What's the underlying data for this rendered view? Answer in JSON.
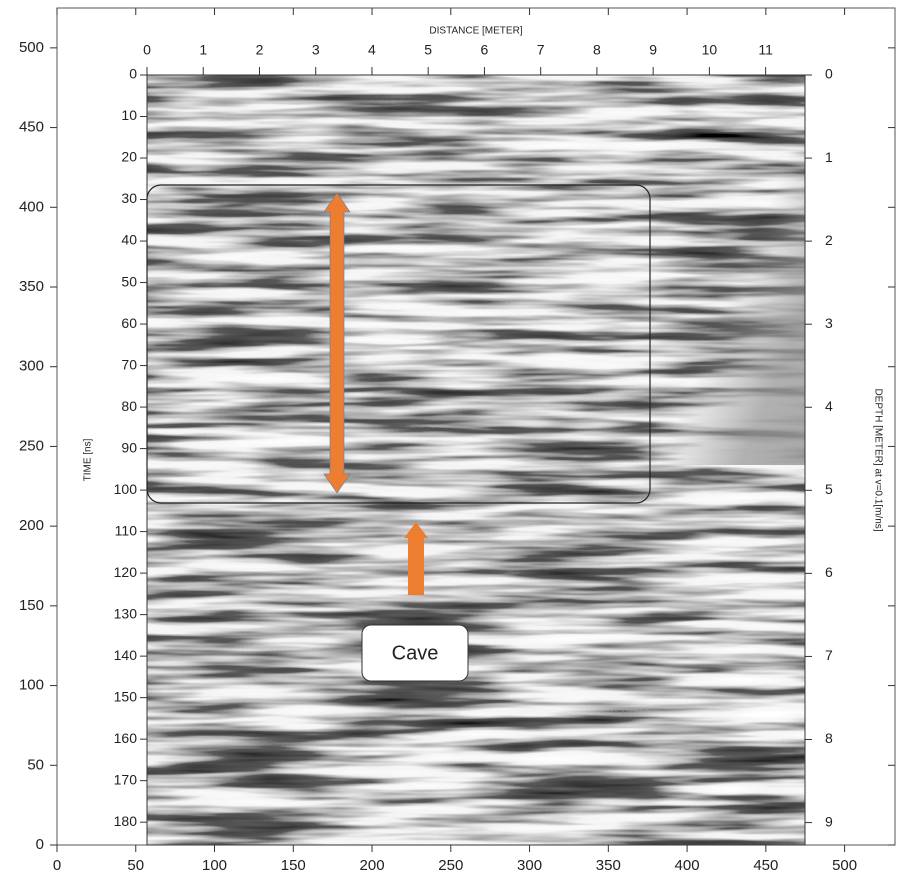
{
  "chart_data": {
    "type": "radargram",
    "xlim": [
      0,
      532
    ],
    "xticks": [
      0,
      50,
      100,
      150,
      200,
      250,
      300,
      350,
      400,
      450,
      500
    ],
    "ylim": [
      0,
      525
    ],
    "yticks": [
      0,
      50,
      100,
      150,
      200,
      250,
      300,
      350,
      400,
      450,
      500
    ],
    "distance_axis": {
      "label": "DISTANCE [METER]",
      "xlim": [
        0,
        11.7
      ],
      "xticks": [
        0,
        1,
        2,
        3,
        4,
        5,
        6,
        7,
        8,
        9,
        10,
        11
      ]
    },
    "time_axis": {
      "label": "TIME [ns]",
      "ylim": [
        0,
        185.5
      ],
      "yticks": [
        0,
        10,
        20,
        30,
        40,
        50,
        60,
        70,
        80,
        90,
        100,
        110,
        120,
        130,
        140,
        150,
        160,
        170,
        180
      ]
    },
    "depth_axis": {
      "label": "DEPTH [METER] at v=0.1[m/ns]",
      "ylim": [
        0,
        9.27
      ],
      "yticks": [
        0,
        1,
        2,
        3,
        4,
        5,
        6,
        7,
        8,
        9
      ]
    },
    "annotation": "Cave"
  }
}
